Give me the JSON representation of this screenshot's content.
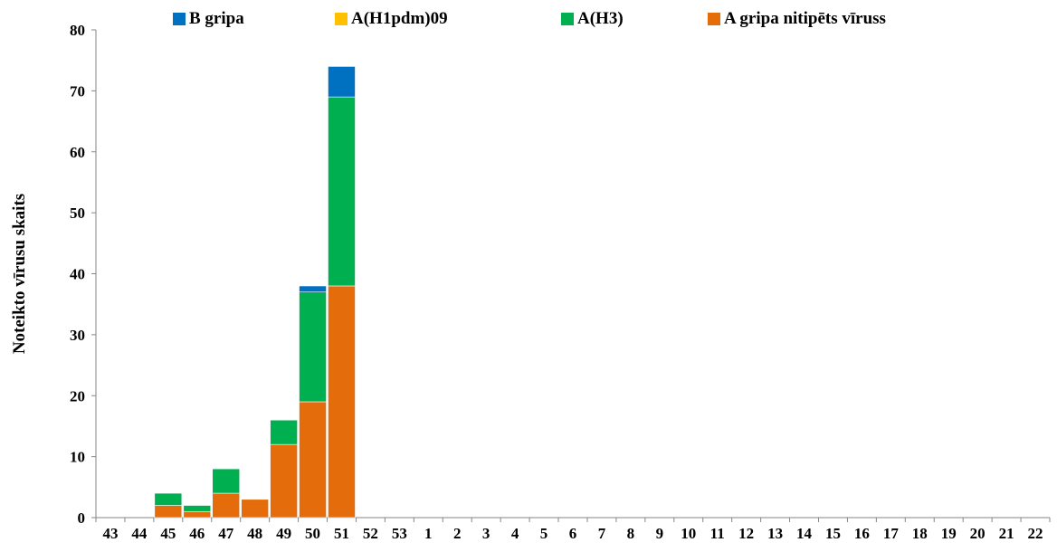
{
  "chart_data": {
    "type": "bar",
    "stacked": true,
    "title": "",
    "xlabel": "",
    "ylabel": "Noteikto vīrusu skaits",
    "ylim": [
      0,
      80
    ],
    "yticks": [
      0,
      10,
      20,
      30,
      40,
      50,
      60,
      70,
      80
    ],
    "grid": false,
    "legend_position": "top",
    "categories": [
      "43",
      "44",
      "45",
      "46",
      "47",
      "48",
      "49",
      "50",
      "51",
      "52",
      "53",
      "1",
      "2",
      "3",
      "4",
      "5",
      "6",
      "7",
      "8",
      "9",
      "10",
      "11",
      "12",
      "13",
      "14",
      "15",
      "16",
      "17",
      "18",
      "19",
      "20",
      "21",
      "22"
    ],
    "series": [
      {
        "name": "A gripa nitipēts vīruss",
        "color": "#E46C0A",
        "values": [
          0,
          0,
          2,
          1,
          4,
          3,
          12,
          19,
          38,
          0,
          0,
          0,
          0,
          0,
          0,
          0,
          0,
          0,
          0,
          0,
          0,
          0,
          0,
          0,
          0,
          0,
          0,
          0,
          0,
          0,
          0,
          0,
          0
        ]
      },
      {
        "name": "A(H3)",
        "color": "#00B050",
        "values": [
          0,
          0,
          2,
          1,
          4,
          0,
          4,
          18,
          31,
          0,
          0,
          0,
          0,
          0,
          0,
          0,
          0,
          0,
          0,
          0,
          0,
          0,
          0,
          0,
          0,
          0,
          0,
          0,
          0,
          0,
          0,
          0,
          0
        ]
      },
      {
        "name": "A(H1pdm)09",
        "color": "#FFC000",
        "values": [
          0,
          0,
          0,
          0,
          0,
          0,
          0,
          0,
          0,
          0,
          0,
          0,
          0,
          0,
          0,
          0,
          0,
          0,
          0,
          0,
          0,
          0,
          0,
          0,
          0,
          0,
          0,
          0,
          0,
          0,
          0,
          0,
          0
        ]
      },
      {
        "name": "B gripa",
        "color": "#0070C0",
        "values": [
          0,
          0,
          0,
          0,
          0,
          0,
          0,
          1,
          5,
          0,
          0,
          0,
          0,
          0,
          0,
          0,
          0,
          0,
          0,
          0,
          0,
          0,
          0,
          0,
          0,
          0,
          0,
          0,
          0,
          0,
          0,
          0,
          0
        ]
      }
    ],
    "legend_order": [
      "B gripa",
      "A(H1pdm)09",
      "A(H3)",
      "A gripa nitipēts vīruss"
    ]
  }
}
